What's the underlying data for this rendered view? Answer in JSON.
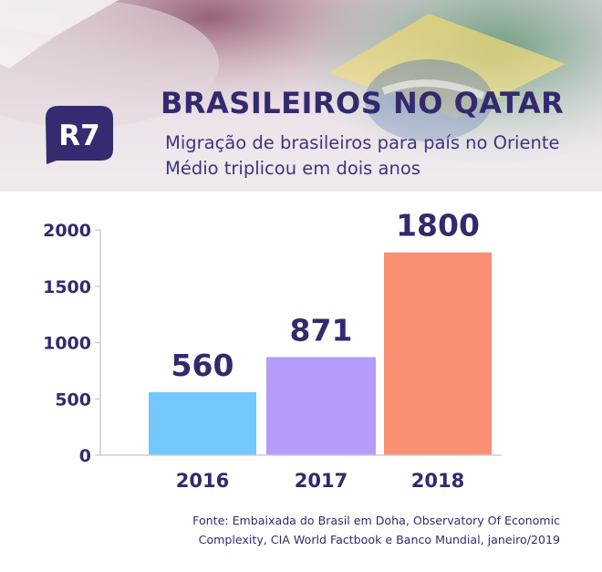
{
  "logo": {
    "text": "R7",
    "color": "#352b70"
  },
  "header": {
    "title": "BRASILEIROS NO QATAR",
    "subtitle": "Migração de brasileiros para país no Oriente Médio triplicou em dois anos"
  },
  "chart_data": {
    "type": "bar",
    "title": "BRASILEIROS NO QATAR",
    "xlabel": "",
    "ylabel": "",
    "categories": [
      "2016",
      "2017",
      "2018"
    ],
    "values": [
      560,
      871,
      1800
    ],
    "data_labels": [
      "560",
      "871",
      "1800"
    ],
    "colors": [
      "#72c8fc",
      "#b59cf9",
      "#f98f73"
    ],
    "ylim": [
      0,
      2000
    ],
    "yticks": [
      0,
      500,
      1000,
      1500,
      2000
    ],
    "ytick_labels": [
      "0",
      "500",
      "1000",
      "1500",
      "2000"
    ],
    "grid": false,
    "legend": "none"
  },
  "source": "Fonte: Embaixada do Brasil em Doha, Observatory Of Economic Complexity, CIA World Factbook e Banco Mundial, janeiro/2019",
  "colors": {
    "text": "#332a6e",
    "axis": "#cfcfd6"
  }
}
